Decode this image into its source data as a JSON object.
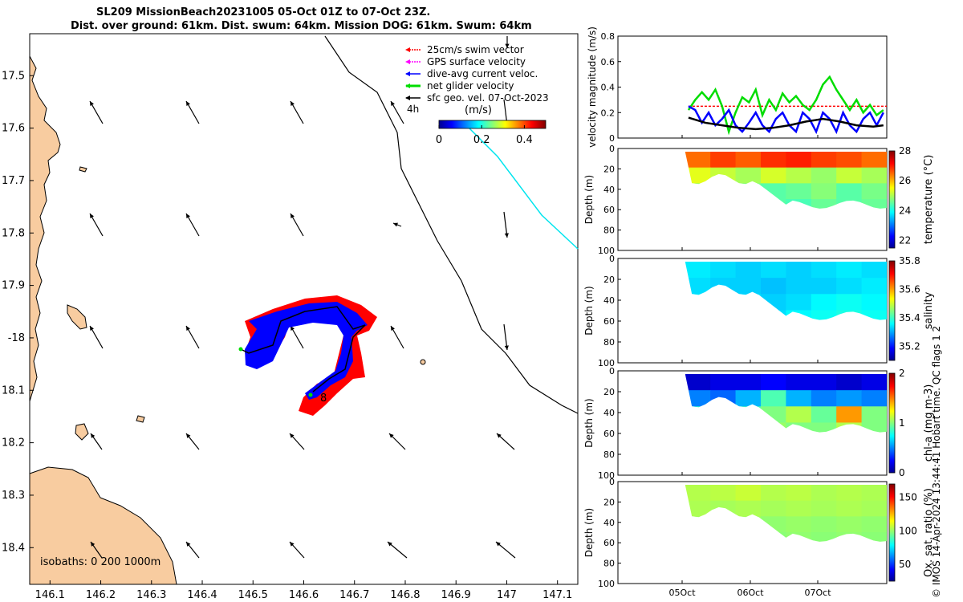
{
  "titles": {
    "line1": "SL209 MissionBeach20231005 05-Oct 01Z to 07-Oct 23Z.",
    "line2": "Dist. over ground: 61km. Dist. swum: 64km. Mission DOG: 61km. Swum: 64km"
  },
  "credit": "© IMOS 14-Apr-2024 13:44:41 Hobart time. QC flags 1  2",
  "map": {
    "lon_ticks": [
      146.1,
      146.2,
      146.3,
      146.4,
      146.5,
      146.6,
      146.7,
      146.8,
      146.9,
      147,
      147.1
    ],
    "lat_ticks": [
      17.5,
      17.6,
      17.7,
      17.8,
      17.9,
      -18,
      18.1,
      18.2,
      18.3,
      18.4
    ],
    "xlim": [
      146.06,
      147.14
    ],
    "ylim": [
      -18.47,
      -17.42
    ],
    "isobath_label": "isobaths: 0  200  1000m",
    "time_label": "4h",
    "end_label": "8",
    "colorbar": {
      "title": "(m/s)",
      "ticks": [
        0,
        0.2,
        0.4
      ],
      "range": [
        0,
        0.5
      ]
    },
    "legend": [
      {
        "label": "25cm/s swim vector",
        "color": "#ff0000"
      },
      {
        "label": "GPS surface velocity",
        "color": "#ff00ff"
      },
      {
        "label": "dive-avg current veloc.",
        "color": "#0000ff"
      },
      {
        "label": "net glider velocity",
        "color": "#00dd00"
      },
      {
        "label": "sfc geo. vel. 07-Oct-2023",
        "color": "#000000"
      }
    ],
    "colors": {
      "land": "#f8cca0",
      "track_blue": "#0000ff",
      "track_red": "#ff0000",
      "cyan": "#00e5ee"
    }
  },
  "time_axis": {
    "ticks": [
      "05Oct",
      "06Oct",
      "07Oct"
    ]
  },
  "panels": [
    {
      "id": "velocity",
      "ylabel": "velocity magnitude (m/s)",
      "yticks": [
        "0",
        "0.2",
        "0.4",
        "0.6",
        "0.8"
      ]
    },
    {
      "id": "temperature",
      "ylabel": "Depth (m)",
      "yticks": [
        "0",
        "20",
        "40",
        "60",
        "80",
        "100"
      ],
      "cbar_label": "temperature (°C)",
      "cbar_ticks": [
        "22",
        "24",
        "26",
        "28"
      ]
    },
    {
      "id": "salinity",
      "ylabel": "Depth (m)",
      "yticks": [
        "0",
        "20",
        "40",
        "60",
        "80",
        "100"
      ],
      "cbar_label": "salinity",
      "cbar_ticks": [
        "35.2",
        "35.4",
        "35.6",
        "35.8"
      ]
    },
    {
      "id": "chla",
      "ylabel": "Depth (m)",
      "yticks": [
        "0",
        "20",
        "40",
        "60",
        "80",
        "100"
      ],
      "cbar_label": "chl-a (mg m-3)",
      "cbar_ticks": [
        "0",
        "1",
        "2"
      ]
    },
    {
      "id": "oxygen",
      "ylabel": "Depth (m)",
      "yticks": [
        "0",
        "20",
        "40",
        "60",
        "80",
        "100"
      ],
      "cbar_label": "Ox. sat. ratio (%)",
      "cbar_ticks": [
        "50",
        "100",
        "150"
      ]
    }
  ],
  "chart_data": [
    {
      "type": "line",
      "xlabel": "",
      "ylabel": "velocity magnitude (m/s)",
      "ylim": [
        0,
        0.8
      ],
      "x_ticks": [
        "05Oct",
        "06Oct",
        "07Oct"
      ],
      "series": [
        {
          "color": "#ff0000",
          "x": [
            0.05,
            3.0
          ],
          "y": [
            0.25,
            0.25
          ]
        },
        {
          "color": "#00dd00",
          "x": [
            0.05,
            0.15,
            0.25,
            0.35,
            0.45,
            0.55,
            0.65,
            0.75,
            0.85,
            0.95,
            1.05,
            1.15,
            1.25,
            1.35,
            1.45,
            1.55,
            1.65,
            1.75,
            1.85,
            1.95,
            2.05,
            2.15,
            2.25,
            2.35,
            2.45,
            2.55,
            2.65,
            2.75,
            2.85,
            2.95
          ],
          "y": [
            0.22,
            0.3,
            0.36,
            0.3,
            0.38,
            0.25,
            0.05,
            0.2,
            0.32,
            0.28,
            0.38,
            0.18,
            0.3,
            0.22,
            0.35,
            0.28,
            0.33,
            0.26,
            0.22,
            0.3,
            0.42,
            0.48,
            0.38,
            0.3,
            0.22,
            0.3,
            0.2,
            0.26,
            0.18,
            0.22
          ]
        },
        {
          "color": "#0000ff",
          "x": [
            0.05,
            0.15,
            0.25,
            0.35,
            0.45,
            0.55,
            0.65,
            0.75,
            0.85,
            0.95,
            1.05,
            1.15,
            1.25,
            1.35,
            1.45,
            1.55,
            1.65,
            1.75,
            1.85,
            1.95,
            2.05,
            2.15,
            2.25,
            2.35,
            2.45,
            2.55,
            2.65,
            2.75,
            2.85,
            2.95
          ],
          "y": [
            0.25,
            0.22,
            0.12,
            0.2,
            0.1,
            0.15,
            0.22,
            0.1,
            0.05,
            0.12,
            0.2,
            0.1,
            0.05,
            0.15,
            0.2,
            0.1,
            0.05,
            0.2,
            0.15,
            0.05,
            0.2,
            0.15,
            0.05,
            0.2,
            0.1,
            0.05,
            0.15,
            0.2,
            0.1,
            0.2
          ]
        },
        {
          "color": "#000000",
          "x": [
            0.05,
            0.3,
            0.55,
            0.8,
            1.05,
            1.3,
            1.55,
            1.8,
            2.05,
            2.3,
            2.55,
            2.8,
            2.95
          ],
          "y": [
            0.16,
            0.12,
            0.1,
            0.08,
            0.07,
            0.08,
            0.1,
            0.13,
            0.15,
            0.13,
            0.1,
            0.09,
            0.1
          ]
        }
      ]
    },
    {
      "type": "heatmap",
      "variable": "temperature (°C)",
      "ylabel": "Depth (m)",
      "ylim": [
        100,
        0
      ],
      "clim": [
        21.5,
        28
      ],
      "values": [
        [
          26.5,
          26.8,
          26.6,
          26.9,
          27.0,
          26.8,
          26.7,
          26.5
        ],
        [
          25.4,
          25.2,
          25.0,
          25.3,
          25.1,
          24.9,
          25.2,
          25.0
        ],
        [
          24.8,
          24.6,
          24.7,
          24.5,
          24.6,
          24.8,
          24.5,
          24.7
        ],
        [
          24.6,
          24.5,
          24.4,
          24.5,
          24.4,
          24.6,
          24.5,
          24.6
        ]
      ]
    },
    {
      "type": "heatmap",
      "variable": "salinity",
      "ylabel": "Depth (m)",
      "ylim": [
        100,
        0
      ],
      "clim": [
        35.1,
        35.8
      ],
      "values": [
        [
          35.35,
          35.34,
          35.33,
          35.34,
          35.33,
          35.34,
          35.35,
          35.34
        ],
        [
          35.34,
          35.33,
          35.33,
          35.32,
          35.33,
          35.33,
          35.34,
          35.35
        ],
        [
          35.35,
          35.34,
          35.34,
          35.33,
          35.34,
          35.36,
          35.37,
          35.36
        ],
        [
          35.36,
          35.35,
          35.35,
          35.34,
          35.36,
          35.37,
          35.38,
          35.37
        ]
      ]
    },
    {
      "type": "heatmap",
      "variable": "chl-a (mg m-3)",
      "ylabel": "Depth (m)",
      "ylim": [
        100,
        0
      ],
      "clim": [
        0,
        2
      ],
      "values": [
        [
          0.15,
          0.2,
          0.2,
          0.25,
          0.2,
          0.2,
          0.15,
          0.2
        ],
        [
          0.5,
          0.45,
          0.6,
          0.9,
          0.6,
          0.5,
          0.55,
          0.5
        ],
        [
          0.85,
          0.8,
          0.9,
          1.0,
          1.1,
          0.95,
          1.45,
          1.0
        ],
        [
          0.9,
          0.85,
          1.0,
          1.05,
          1.0,
          1.0,
          1.1,
          1.0
        ]
      ]
    },
    {
      "type": "heatmap",
      "variable": "Ox. sat. ratio (%)",
      "ylabel": "Depth (m)",
      "ylim": [
        100,
        0
      ],
      "clim": [
        25,
        170
      ],
      "values": [
        [
          105,
          106,
          108,
          105,
          106,
          104,
          105,
          104
        ],
        [
          104,
          103,
          104,
          103,
          104,
          103,
          104,
          103
        ],
        [
          102,
          101,
          102,
          100,
          101,
          100,
          101,
          100
        ],
        [
          101,
          100,
          100,
          99,
          100,
          99,
          100,
          99
        ]
      ]
    }
  ]
}
